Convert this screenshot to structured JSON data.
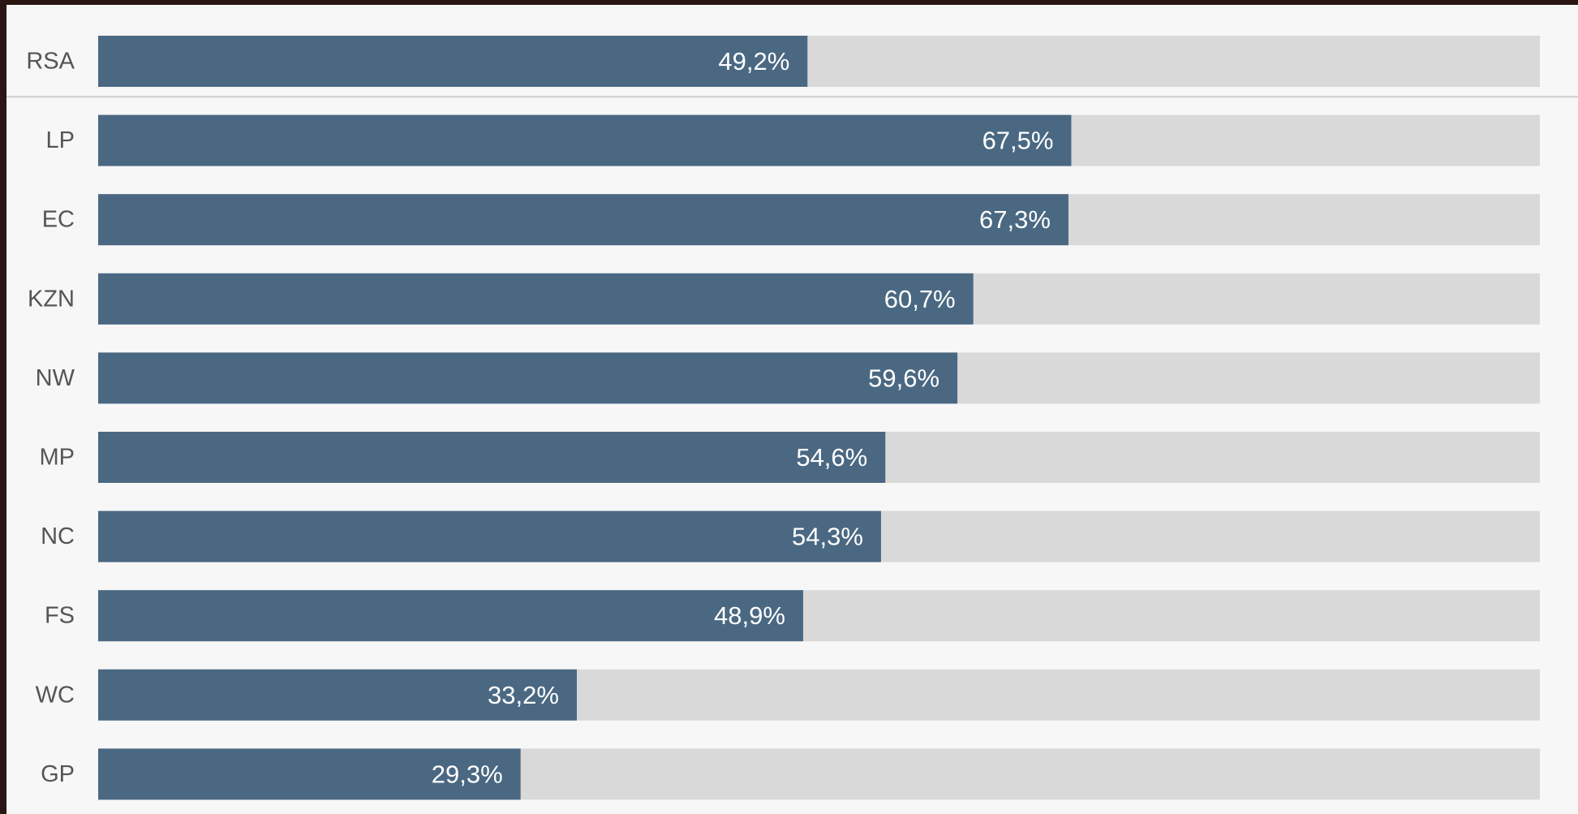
{
  "chart_data": {
    "type": "bar",
    "orientation": "horizontal",
    "categories": [
      "RSA",
      "LP",
      "EC",
      "KZN",
      "NW",
      "MP",
      "NC",
      "FS",
      "WC",
      "GP"
    ],
    "values": [
      49.2,
      67.5,
      67.3,
      60.7,
      59.6,
      54.6,
      54.3,
      48.9,
      33.2,
      29.3
    ],
    "data_labels": [
      "49,2%",
      "67,5%",
      "67,3%",
      "60,7%",
      "59,6%",
      "54,6%",
      "54,3%",
      "48,9%",
      "33,2%",
      "29,3%"
    ],
    "xlim": [
      0,
      100
    ],
    "title": "",
    "xlabel": "",
    "ylabel": "",
    "grid": false,
    "legend": "none",
    "colors": {
      "bar": "#4a6882",
      "track": "#d9d9d9",
      "background": "#f7f7f7",
      "frame": "#2a1612",
      "separator": "#cfcfcf"
    }
  }
}
